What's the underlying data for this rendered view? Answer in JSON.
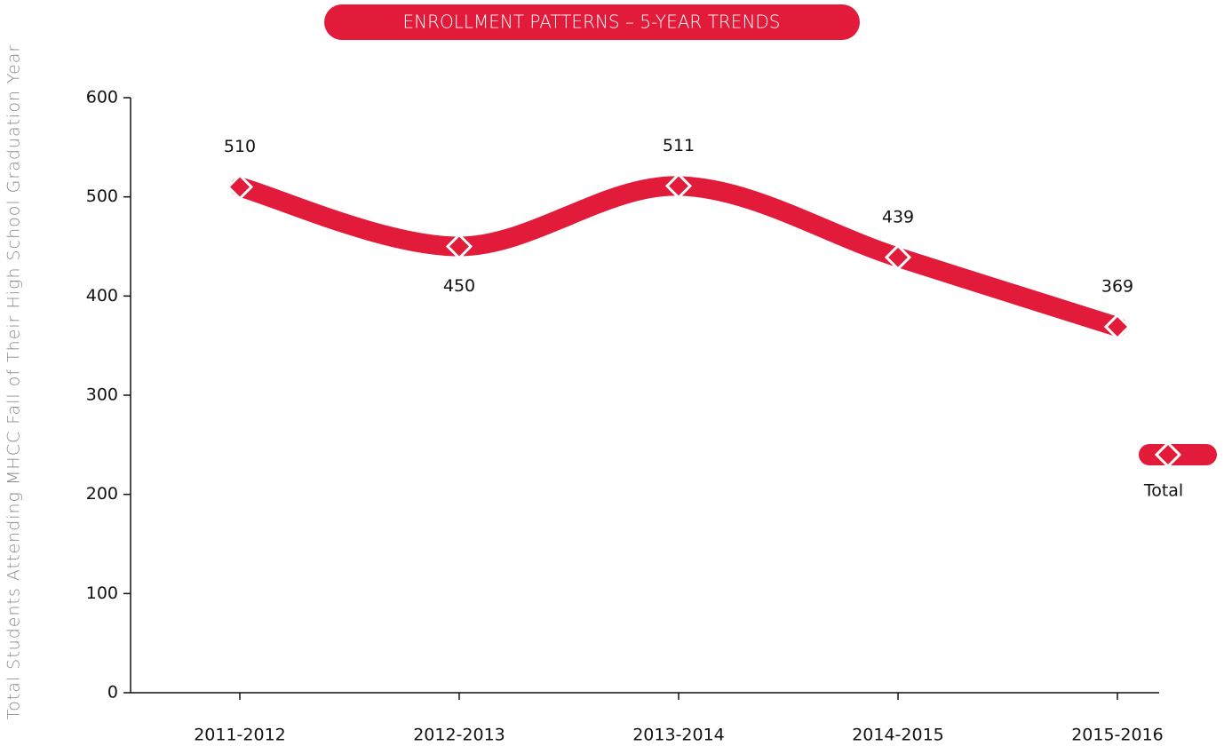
{
  "chart_data": {
    "type": "line",
    "title": "ENROLLMENT PATTERNS – 5-YEAR TRENDS",
    "y_label": "Total Students Attending MHCC Fall of Their High School Graduation Year",
    "categories": [
      "2011-2012",
      "2012-2013",
      "2013-2014",
      "2014-2015",
      "2015-2016"
    ],
    "series": [
      {
        "name": "Total",
        "color": "#e31b3b",
        "values": [
          510,
          450,
          511,
          439,
          369
        ]
      }
    ],
    "ylim": [
      0,
      600
    ],
    "yticks": [
      0,
      100,
      200,
      300,
      400,
      500,
      600
    ],
    "legend": "right",
    "data_labels": true
  }
}
